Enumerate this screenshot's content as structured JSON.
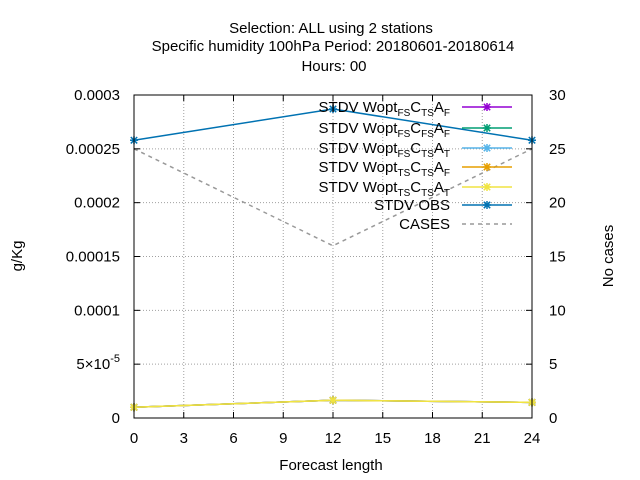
{
  "chart_data": {
    "type": "line",
    "title_lines": [
      "Selection: ALL using     2 stations",
      "Specific humidity 100hPa   Period: 20180601-20180614",
      "Hours:  00"
    ],
    "xlabel": "Forecast length",
    "ylabel": "g/Kg",
    "y2label": "No cases",
    "xlim": [
      0,
      24
    ],
    "ylim": [
      0,
      0.0003
    ],
    "y2lim": [
      0,
      30
    ],
    "x_ticks": [
      0,
      3,
      6,
      9,
      12,
      15,
      18,
      21,
      24
    ],
    "y_ticks": [
      {
        "value": 0,
        "label": "0"
      },
      {
        "value": 5e-05,
        "label": "5×10",
        "exp": "-5"
      },
      {
        "value": 0.0001,
        "label": "0.0001"
      },
      {
        "value": 0.00015,
        "label": "0.00015"
      },
      {
        "value": 0.0002,
        "label": "0.0002"
      },
      {
        "value": 0.00025,
        "label": "0.00025"
      },
      {
        "value": 0.0003,
        "label": "0.0003"
      }
    ],
    "y2_ticks": [
      0,
      5,
      10,
      15,
      20,
      25,
      30
    ],
    "grid": true,
    "legend_position": "top-right",
    "series": [
      {
        "name": "STDV Wopt",
        "sub1": "FS",
        "mid1": "C",
        "sub2": "TS",
        "mid2": "A",
        "sub3": "F",
        "color": "#9400d3",
        "marker": "star",
        "axis": "y1",
        "x": [
          0,
          12,
          24
        ],
        "values": [
          1e-05,
          1.65e-05,
          1.45e-05
        ]
      },
      {
        "name": "STDV Wopt",
        "sub1": "FS",
        "mid1": "C",
        "sub2": "FS",
        "mid2": "A",
        "sub3": "F",
        "color": "#009e73",
        "marker": "star",
        "axis": "y1",
        "x": [
          0,
          12,
          24
        ],
        "values": [
          1e-05,
          1.65e-05,
          1.45e-05
        ]
      },
      {
        "name": "STDV Wopt",
        "sub1": "FS",
        "mid1": "C",
        "sub2": "TS",
        "mid2": "A",
        "sub3": "T",
        "color": "#56b4e9",
        "marker": "star",
        "axis": "y1",
        "x": [
          0,
          12,
          24
        ],
        "values": [
          1e-05,
          1.65e-05,
          1.45e-05
        ]
      },
      {
        "name": "STDV Wopt",
        "sub1": "TS",
        "mid1": "C",
        "sub2": "TS",
        "mid2": "A",
        "sub3": "F",
        "color": "#e69f00",
        "marker": "star",
        "axis": "y1",
        "x": [
          0,
          12,
          24
        ],
        "values": [
          1e-05,
          1.65e-05,
          1.45e-05
        ]
      },
      {
        "name": "STDV Wopt",
        "sub1": "TS",
        "mid1": "C",
        "sub2": "TS",
        "mid2": "A",
        "sub3": "T",
        "color": "#f0e442",
        "marker": "star",
        "axis": "y1",
        "x": [
          0,
          12,
          24
        ],
        "values": [
          1e-05,
          1.65e-05,
          1.45e-05
        ]
      },
      {
        "name": "STDV OBS",
        "color": "#0072b2",
        "marker": "star",
        "axis": "y1",
        "x": [
          0,
          12,
          24
        ],
        "values": [
          0.000258,
          0.000287,
          0.000258
        ]
      },
      {
        "name": "CASES",
        "color": "#999999",
        "dashed": true,
        "axis": "y2",
        "x": [
          0,
          12,
          24
        ],
        "values": [
          25,
          16,
          25
        ]
      }
    ]
  }
}
